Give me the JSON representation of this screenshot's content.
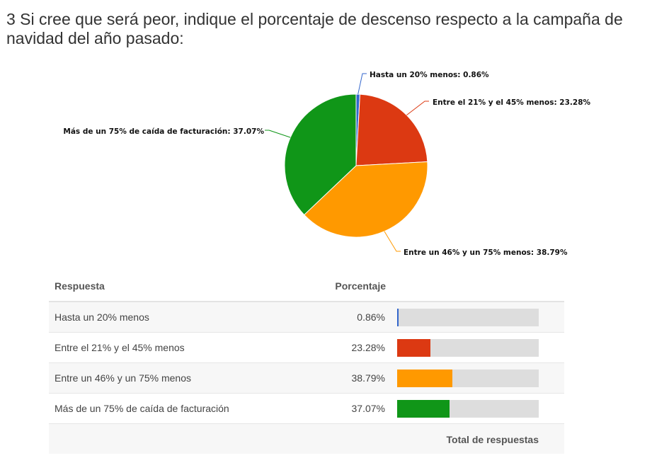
{
  "title": "3 Si cree que será peor, indique el porcentaje de descenso respecto a la campaña de navidad del año pasado:",
  "chart_data": {
    "type": "pie",
    "slices": [
      {
        "label": "Hasta un 20% menos",
        "value": 0.86,
        "display": "0.86%",
        "color": "#3366cc"
      },
      {
        "label": "Entre el 21% y el 45% menos",
        "value": 23.28,
        "display": "23.28%",
        "color": "#dc3912"
      },
      {
        "label": "Entre un 46% y un 75% menos",
        "value": 38.79,
        "display": "38.79%",
        "color": "#ff9900"
      },
      {
        "label": "Más de un 75% de caída de facturación",
        "value": 37.07,
        "display": "37.07%",
        "color": "#109618"
      }
    ]
  },
  "table": {
    "header_answer": "Respuesta",
    "header_percent": "Porcentaje",
    "rows": [
      {
        "label": "Hasta un 20% menos",
        "percent": "0.86%",
        "value": 0.86,
        "color": "#3366cc"
      },
      {
        "label": "Entre el 21% y el 45% menos",
        "percent": "23.28%",
        "value": 23.28,
        "color": "#dc3912"
      },
      {
        "label": "Entre un 46% y un 75% menos",
        "percent": "38.79%",
        "value": 38.79,
        "color": "#ff9900"
      },
      {
        "label": "Más de un 75% de caída de facturación",
        "percent": "37.07%",
        "value": 37.07,
        "color": "#109618"
      }
    ],
    "total_label": "Total de respuestas"
  }
}
